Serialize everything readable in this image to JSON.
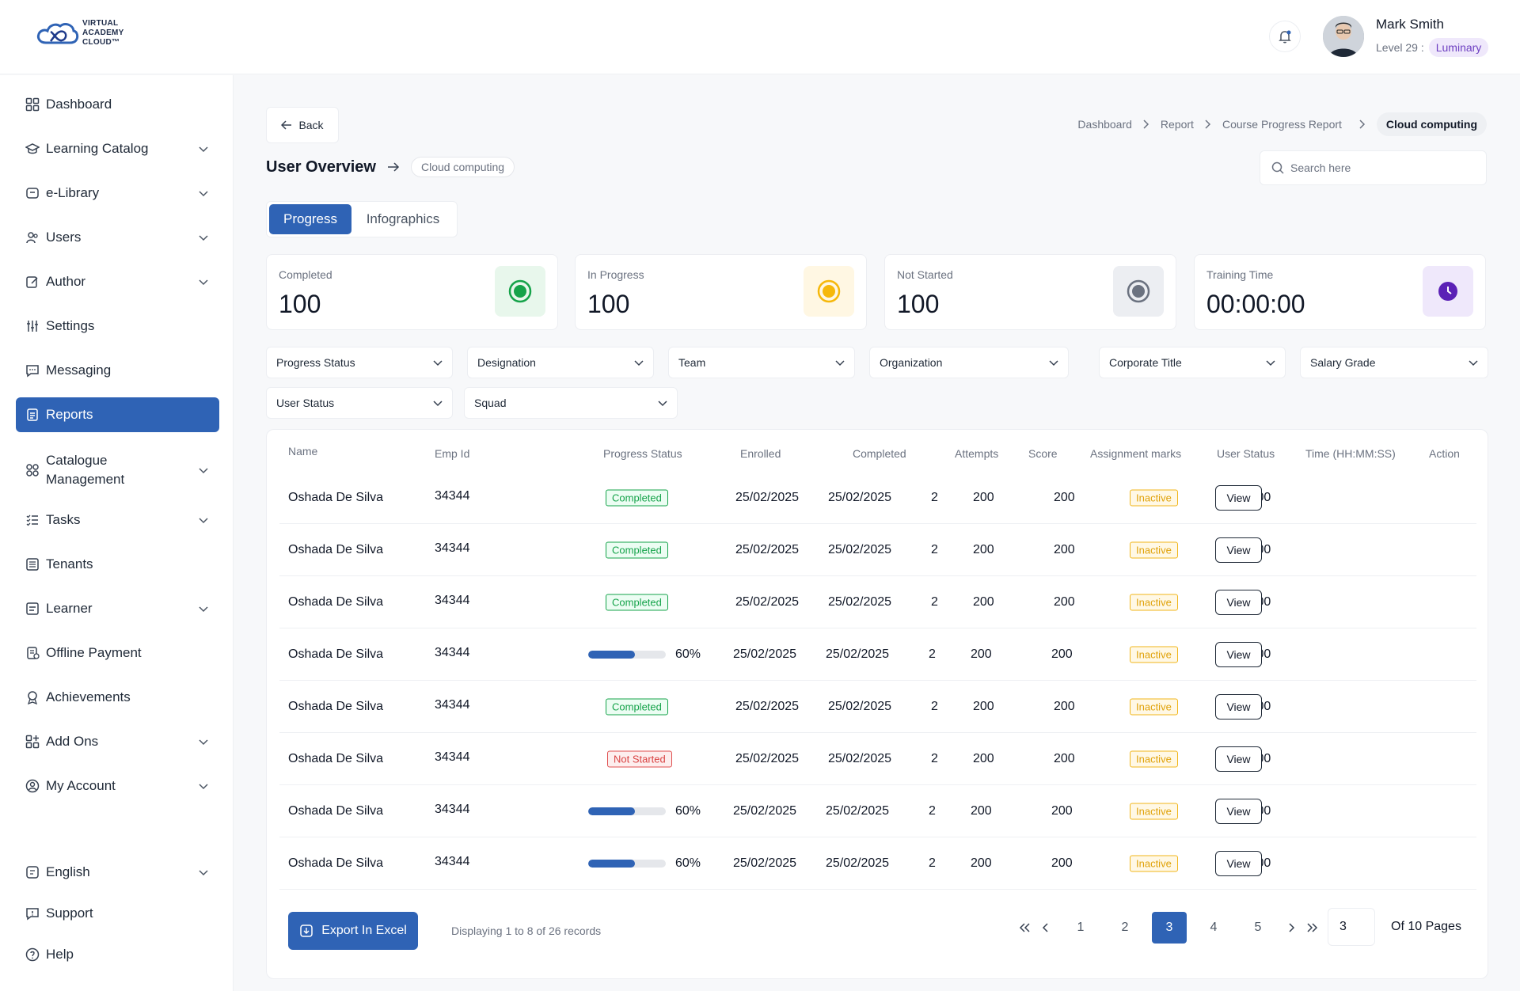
{
  "brand": {
    "logo_text": [
      "VIRTUAL",
      "ACADEMY",
      "CLOUD™"
    ]
  },
  "user": {
    "name": "Mark Smith",
    "level": "Level 29 :",
    "badge": "Luminary"
  },
  "sidebar": {
    "items": [
      {
        "label": "Dashboard",
        "icon": "grid-icon"
      },
      {
        "label": "Learning Catalog",
        "icon": "graduation-icon",
        "expandable": true
      },
      {
        "label": "e-Library",
        "icon": "library-icon",
        "expandable": true
      },
      {
        "label": "Users",
        "icon": "users-icon",
        "expandable": true
      },
      {
        "label": "Author",
        "icon": "edit-icon",
        "expandable": true
      },
      {
        "label": "Settings",
        "icon": "sliders-icon"
      },
      {
        "label": "Messaging",
        "icon": "message-icon"
      },
      {
        "label": "Reports",
        "icon": "report-icon",
        "active": true
      },
      {
        "label": "Catalogue Management",
        "icon": "catalogue-icon",
        "expandable": true
      },
      {
        "label": "Tasks",
        "icon": "tasks-icon",
        "expandable": true
      },
      {
        "label": "Tenants",
        "icon": "tenants-icon"
      },
      {
        "label": "Learner",
        "icon": "learner-icon",
        "expandable": true
      },
      {
        "label": "Offline Payment",
        "icon": "payment-icon"
      },
      {
        "label": "Achievements",
        "icon": "award-icon"
      },
      {
        "label": "Add Ons",
        "icon": "addons-icon",
        "expandable": true
      },
      {
        "label": "My Account",
        "icon": "account-icon",
        "expandable": true
      }
    ],
    "bottom": [
      {
        "label": "English",
        "icon": "language-icon",
        "expandable": true
      },
      {
        "label": "Support",
        "icon": "support-icon"
      },
      {
        "label": "Help",
        "icon": "help-icon"
      }
    ]
  },
  "main": {
    "back_label": "Back",
    "breadcrumb": [
      "Dashboard",
      "Report",
      "Course Progress Report",
      "Cloud computing"
    ],
    "title": "User Overview",
    "title_chip": "Cloud computing",
    "search_placeholder": "Search here",
    "tabs": [
      "Progress",
      "Infographics"
    ],
    "stats": [
      {
        "label": "Completed",
        "value": "100",
        "color": "#16a34a",
        "bg": "#e8f7ec"
      },
      {
        "label": "In Progress",
        "value": "100",
        "color": "#f6b80b",
        "bg": "#fff7e3"
      },
      {
        "label": "Not Started",
        "value": "100",
        "color": "#6b7280",
        "bg": "#eceef2"
      },
      {
        "label": "Training Time",
        "value": "00:00:00",
        "color": "#5b21b6",
        "bg": "#efe8fb"
      }
    ],
    "filters": [
      "Progress Status",
      "Designation",
      "Team",
      "Organization",
      "Corporate Title",
      "Salary Grade",
      "User Status",
      "Squad"
    ]
  },
  "table": {
    "columns": [
      "Name",
      "Emp Id",
      "Progress Status",
      "Enrolled",
      "Completed",
      "Attempts",
      "Score",
      "Assignment marks",
      "User Status",
      "Time (HH:MM:SS)",
      "Action"
    ],
    "rows": [
      {
        "name": "Oshada De Silva",
        "emp_id": "34344",
        "status_type": "badge",
        "status": "Completed",
        "enrolled": "25/02/2025",
        "completed": "25/02/2025",
        "attempts": "2",
        "score": "200",
        "assignment": "200",
        "user_status": "Inactive",
        "time": "00:00:00",
        "action": "View"
      },
      {
        "name": "Oshada De Silva",
        "emp_id": "34344",
        "status_type": "badge",
        "status": "Completed",
        "enrolled": "25/02/2025",
        "completed": "25/02/2025",
        "attempts": "2",
        "score": "200",
        "assignment": "200",
        "user_status": "Inactive",
        "time": "00:00:00",
        "action": "View"
      },
      {
        "name": "Oshada De Silva",
        "emp_id": "34344",
        "status_type": "badge",
        "status": "Completed",
        "enrolled": "25/02/2025",
        "completed": "25/02/2025",
        "attempts": "2",
        "score": "200",
        "assignment": "200",
        "user_status": "Inactive",
        "time": "00:00:00",
        "action": "View"
      },
      {
        "name": "Oshada De Silva",
        "emp_id": "34344",
        "status_type": "progress",
        "status": "60%",
        "progress": 0.6,
        "enrolled": "25/02/2025",
        "completed": "25/02/2025",
        "attempts": "2",
        "score": "200",
        "assignment": "200",
        "user_status": "Inactive",
        "time": "00:00:00",
        "action": "View"
      },
      {
        "name": "Oshada De Silva",
        "emp_id": "34344",
        "status_type": "badge",
        "status": "Completed",
        "enrolled": "25/02/2025",
        "completed": "25/02/2025",
        "attempts": "2",
        "score": "200",
        "assignment": "200",
        "user_status": "Inactive",
        "time": "00:00:00",
        "action": "View"
      },
      {
        "name": "Oshada De Silva",
        "emp_id": "34344",
        "status_type": "badge-red",
        "status": "Not Started",
        "enrolled": "25/02/2025",
        "completed": "25/02/2025",
        "attempts": "2",
        "score": "200",
        "assignment": "200",
        "user_status": "Inactive",
        "time": "00:00:00",
        "action": "View"
      },
      {
        "name": "Oshada De Silva",
        "emp_id": "34344",
        "status_type": "progress",
        "status": "60%",
        "progress": 0.6,
        "enrolled": "25/02/2025",
        "completed": "25/02/2025",
        "attempts": "2",
        "score": "200",
        "assignment": "200",
        "user_status": "Inactive",
        "time": "00:00:00",
        "action": "View"
      },
      {
        "name": "Oshada De Silva",
        "emp_id": "34344",
        "status_type": "progress",
        "status": "60%",
        "progress": 0.6,
        "enrolled": "25/02/2025",
        "completed": "25/02/2025",
        "attempts": "2",
        "score": "200",
        "assignment": "200",
        "user_status": "Inactive",
        "time": "00:00:00",
        "action": "View"
      }
    ]
  },
  "footer": {
    "export_label": "Export In Excel",
    "records_text": "Displaying 1 to 8 of 26 records",
    "pages": [
      "1",
      "2",
      "3",
      "4",
      "5"
    ],
    "current_page": "3",
    "page_input": "3",
    "of_pages": "Of 10 Pages"
  },
  "colors": {
    "accent": "#2f63b5"
  }
}
